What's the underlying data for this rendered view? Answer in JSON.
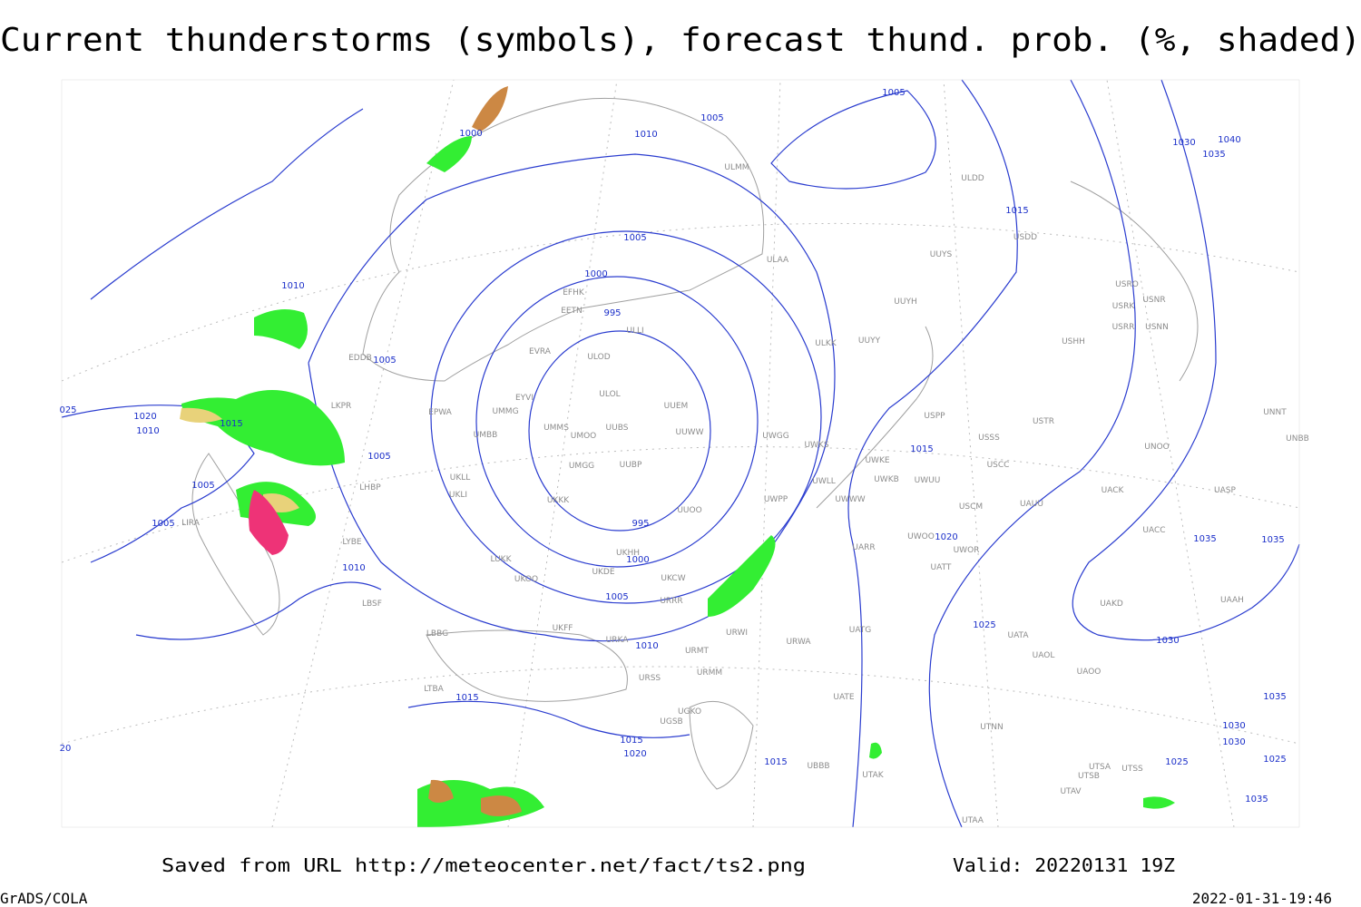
{
  "header": {
    "title": "Current thunderstorms (symbols), forecast thund. prob. (%, shaded)"
  },
  "footer": {
    "saved": "Saved from URL http://meteocenter.net/fact/ts2.png",
    "valid": "Valid: 20220131 19Z",
    "software": "GrADS/COLA",
    "timestamp": "2022-01-31-19:46"
  },
  "isobar_labels": [
    "1005",
    "1005",
    "1010",
    "1000",
    "1015",
    "1005",
    "1000",
    "995",
    "995",
    "1000",
    "1005",
    "1010",
    "1010",
    "1005",
    "1005",
    "1005",
    "1005",
    "1010",
    "1015",
    "1020",
    "1010",
    "1015",
    "1020",
    "1025",
    "1030",
    "1035",
    "1035",
    "1030",
    "1040",
    "1035",
    "1015",
    "1015",
    "1020",
    "1015",
    "1030",
    "1030",
    "1025",
    "1025",
    "1035",
    "1035",
    "025",
    "20"
  ],
  "stations": [
    "EFHK",
    "EETN",
    "ULLI",
    "EVRA",
    "ULOD",
    "EYVI",
    "ULOL",
    "UUEM",
    "UMMG",
    "EPWA",
    "UMMS",
    "UUBS",
    "UMOO",
    "UUWW",
    "UMBB",
    "UWGG",
    "UWKS",
    "UMGG",
    "UUBP",
    "UWKE",
    "UWKB",
    "UWUU",
    "UWLL",
    "UWWW",
    "UKKK",
    "UWPP",
    "UUOO",
    "UKLL",
    "UKLI",
    "LHBP",
    "LIRA",
    "LYBE",
    "LUKK",
    "UKOO",
    "UKDE",
    "UKHH",
    "UKCW",
    "URRR",
    "UKFF",
    "URKA",
    "URMT",
    "URWI",
    "URSS",
    "URMM",
    "UGSB",
    "UGKO",
    "UBBB",
    "UTAK",
    "UATG",
    "UATE",
    "URWA",
    "UARR",
    "UWOO",
    "UWOR",
    "UATT",
    "USCM",
    "UAUU",
    "USCC",
    "USSS",
    "USTR",
    "USPP",
    "UUYY",
    "ULKK",
    "UUYH",
    "UUYS",
    "ULAA",
    "ULMM",
    "ULDD",
    "USDD",
    "USHH",
    "USRO",
    "USNR",
    "USRK",
    "USRR",
    "USNN",
    "UNOO",
    "UNNT",
    "UNBB",
    "UACK",
    "UASP",
    "UACC",
    "UAKD",
    "UAAH",
    "UATA",
    "UAOL",
    "UAOO",
    "UTNN",
    "UTSA",
    "UTSB",
    "UTSS",
    "UTAV",
    "UTAA",
    "LBSF",
    "LBBG",
    "LTBA",
    "LKPR",
    "EDDB"
  ]
}
